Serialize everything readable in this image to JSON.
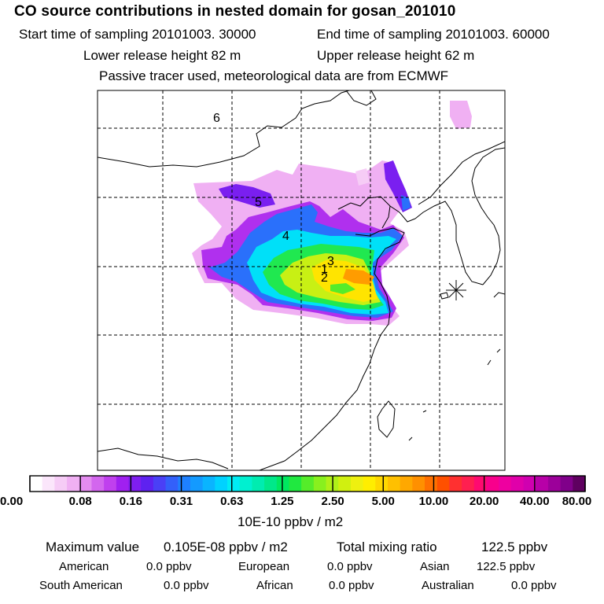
{
  "title": "CO  source contributions in nested domain for gosan_201010",
  "header": {
    "start_time": "Start time of sampling 20101003. 30000",
    "end_time": "End time of sampling 20101003. 60000",
    "lower_height": "Lower release height   82 m",
    "upper_height": "Upper release height   62 m",
    "tracer_note": "Passive tracer used, meteorological data are from ECMWF"
  },
  "map": {
    "receptor_marker": "star-asterisk",
    "source_labels": [
      "6",
      "5",
      "4",
      "3",
      "1",
      "2"
    ]
  },
  "colorbar": {
    "ticks": [
      "0.00",
      "0.08",
      "0.16",
      "0.31",
      "0.63",
      "1.25",
      "2.50",
      "5.00",
      "10.00",
      "20.00",
      "40.00",
      "80.00"
    ],
    "unit": "10E-10 ppbv / m2",
    "colors": [
      "#ffffff",
      "#fbe6fb",
      "#f6ccf6",
      "#f0b0f3",
      "#e48cf0",
      "#d366ee",
      "#c040ee",
      "#a020f0",
      "#7f1ef0",
      "#5e22f0",
      "#4a40f6",
      "#3360fa",
      "#1e80ff",
      "#139aff",
      "#0ab4ff",
      "#00d2ff",
      "#00ecf4",
      "#00f0d0",
      "#00ecb0",
      "#00e88a",
      "#00e860",
      "#20e840",
      "#55ec2a",
      "#88f01e",
      "#b0f018",
      "#d0f010",
      "#eef010",
      "#ffee00",
      "#ffd800",
      "#ffc000",
      "#ffa800",
      "#ff9000",
      "#ff7000",
      "#ff5000",
      "#ff3030",
      "#ff1f50",
      "#ff0a70",
      "#f8008c",
      "#ee00a0",
      "#e000aa",
      "#d000b0",
      "#b800a8",
      "#9c009a",
      "#80008a",
      "#5f0060"
    ]
  },
  "stats": {
    "max_label": "Maximum value",
    "max_value": "0.105E-08 ppbv / m2",
    "total_label": "Total mixing ratio",
    "total_value": "122.5 ppbv",
    "regions": [
      {
        "name": "American",
        "value": "0.0 ppbv"
      },
      {
        "name": "European",
        "value": "0.0 ppbv"
      },
      {
        "name": "Asian",
        "value": "122.5 ppbv"
      },
      {
        "name": "South American",
        "value": "0.0 ppbv"
      },
      {
        "name": "African",
        "value": "0.0 ppbv"
      },
      {
        "name": "Australian",
        "value": "0.0 ppbv"
      }
    ]
  }
}
